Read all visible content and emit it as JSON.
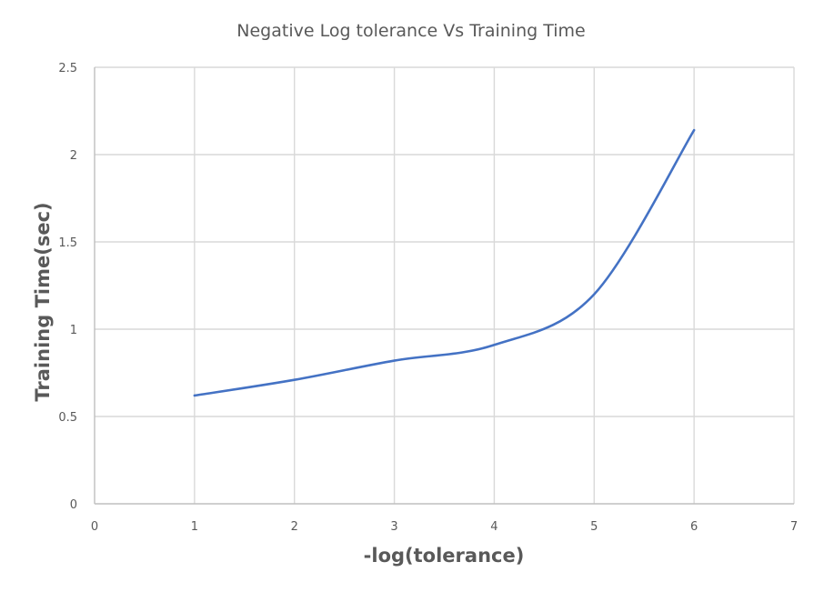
{
  "chart_data": {
    "type": "line",
    "title": "Negative Log tolerance Vs Training Time",
    "xlabel": "-log(tolerance)",
    "ylabel": "Training Time(sec)",
    "xlim": [
      0,
      7
    ],
    "ylim": [
      0,
      2.5
    ],
    "x_ticks": [
      "0",
      "1",
      "2",
      "3",
      "4",
      "5",
      "6",
      "7"
    ],
    "y_ticks": [
      "0",
      "0.5",
      "1",
      "1.5",
      "2",
      "2.5"
    ],
    "grid": true,
    "smoothed": true,
    "series": [
      {
        "x": [
          1,
          2,
          3,
          4,
          5,
          6
        ],
        "values": [
          0.62,
          0.71,
          0.82,
          0.91,
          1.2,
          2.14
        ]
      }
    ],
    "colors": {
      "line": "#4472c4",
      "grid": "#d9d9d9",
      "text": "#595959"
    }
  }
}
